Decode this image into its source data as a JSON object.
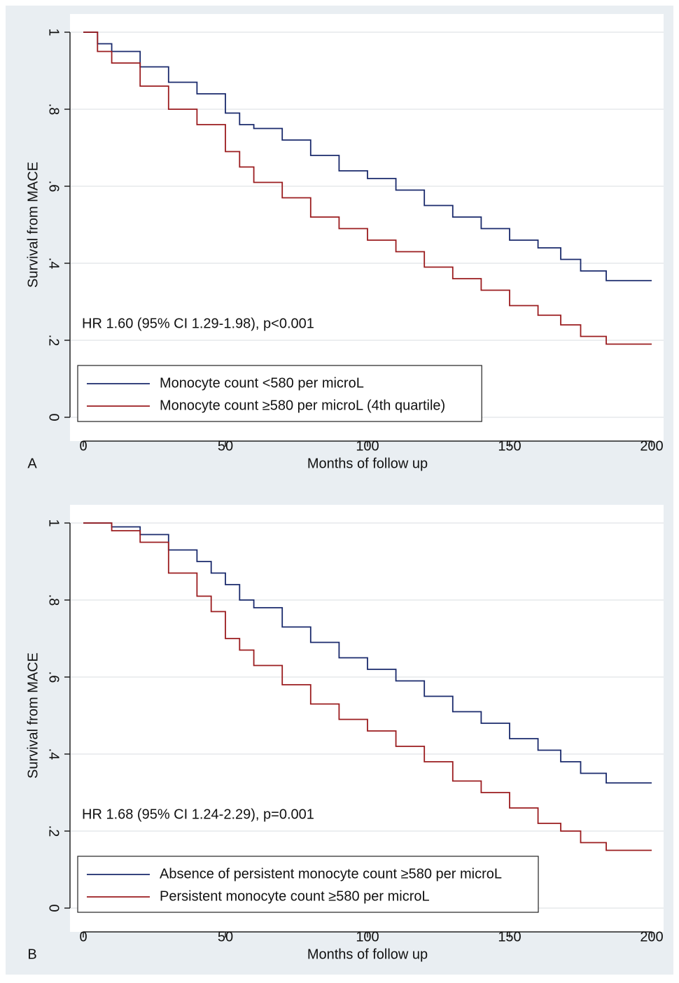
{
  "chart_data": [
    {
      "type": "line",
      "step": true,
      "panel_label": "A",
      "annotation": "HR 1.60 (95% CI 1.29-1.98), p<0.001",
      "xlabel": "Months of follow up",
      "ylabel": "Survival from MACE",
      "xlim": [
        0,
        200
      ],
      "xticks": [
        0,
        50,
        100,
        150,
        200
      ],
      "ylim": [
        0,
        1
      ],
      "yticks": [
        0,
        {
          "value": 0.2,
          "label": ".2"
        },
        {
          "value": 0.4,
          "label": ".4"
        },
        {
          "value": 0.6,
          "label": ".6"
        },
        {
          "value": 0.8,
          "label": ".8"
        },
        1
      ],
      "grid": true,
      "x": [
        0,
        5,
        10,
        20,
        30,
        40,
        50,
        55,
        60,
        70,
        80,
        90,
        100,
        110,
        120,
        130,
        140,
        150,
        160,
        168,
        175,
        184,
        200
      ],
      "series": [
        {
          "name": "Monocyte count <580 per microL",
          "color": "#1a2a6c",
          "values": [
            1,
            0.97,
            0.95,
            0.91,
            0.87,
            0.84,
            0.79,
            0.76,
            0.75,
            0.72,
            0.68,
            0.64,
            0.62,
            0.59,
            0.55,
            0.52,
            0.49,
            0.46,
            0.44,
            0.41,
            0.38,
            0.355,
            0.355
          ]
        },
        {
          "name": "Monocyte count ≥580 per microL (4th quartile)",
          "color": "#9b1c1f",
          "values": [
            1,
            0.95,
            0.92,
            0.86,
            0.8,
            0.76,
            0.69,
            0.65,
            0.61,
            0.57,
            0.52,
            0.49,
            0.46,
            0.43,
            0.39,
            0.36,
            0.33,
            0.29,
            0.265,
            0.24,
            0.21,
            0.19,
            0.19
          ]
        }
      ]
    },
    {
      "type": "line",
      "step": true,
      "panel_label": "B",
      "annotation": "HR 1.68 (95% CI 1.24-2.29), p=0.001",
      "xlabel": "Months of follow up",
      "ylabel": "Survival from MACE",
      "xlim": [
        0,
        200
      ],
      "xticks": [
        0,
        50,
        100,
        150,
        200
      ],
      "ylim": [
        0,
        1
      ],
      "yticks": [
        0,
        {
          "value": 0.2,
          "label": ".2"
        },
        {
          "value": 0.4,
          "label": ".4"
        },
        {
          "value": 0.6,
          "label": ".6"
        },
        {
          "value": 0.8,
          "label": ".8"
        },
        1
      ],
      "grid": true,
      "x": [
        0,
        10,
        20,
        30,
        40,
        45,
        50,
        55,
        60,
        70,
        80,
        90,
        100,
        110,
        120,
        130,
        140,
        150,
        160,
        168,
        175,
        184,
        200
      ],
      "series": [
        {
          "name": "Absence of persistent monocyte count ≥580 per microL",
          "color": "#1a2a6c",
          "values": [
            1,
            0.99,
            0.97,
            0.93,
            0.9,
            0.87,
            0.84,
            0.8,
            0.78,
            0.73,
            0.69,
            0.65,
            0.62,
            0.59,
            0.55,
            0.51,
            0.48,
            0.44,
            0.41,
            0.38,
            0.35,
            0.325,
            0.325
          ]
        },
        {
          "name": "Persistent monocyte count ≥580 per microL",
          "color": "#9b1c1f",
          "values": [
            1,
            0.98,
            0.95,
            0.87,
            0.81,
            0.77,
            0.7,
            0.67,
            0.63,
            0.58,
            0.53,
            0.49,
            0.46,
            0.42,
            0.38,
            0.33,
            0.3,
            0.26,
            0.22,
            0.2,
            0.17,
            0.15,
            0.15
          ]
        }
      ]
    }
  ]
}
